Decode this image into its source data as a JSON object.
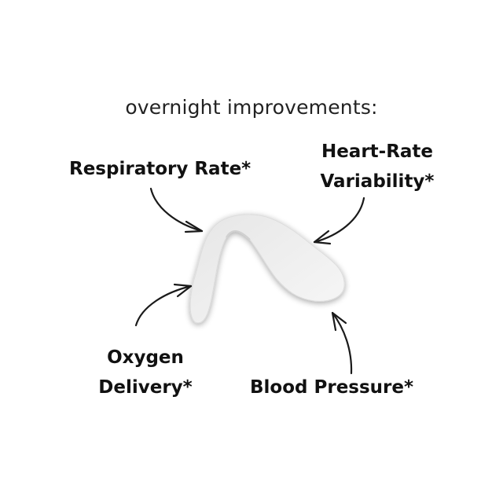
{
  "title": "overnight improvements:",
  "labels": {
    "respiratory_rate": "Respiratory Rate*",
    "hrv_line1": "Heart-Rate",
    "hrv_line2": "Variability*",
    "oxygen_line1": "Oxygen",
    "oxygen_line2": "Delivery*",
    "blood_pressure": "Blood Pressure*"
  },
  "colors": {
    "text": "#111111",
    "background": "#ffffff",
    "strip": "#f2f2f2"
  }
}
